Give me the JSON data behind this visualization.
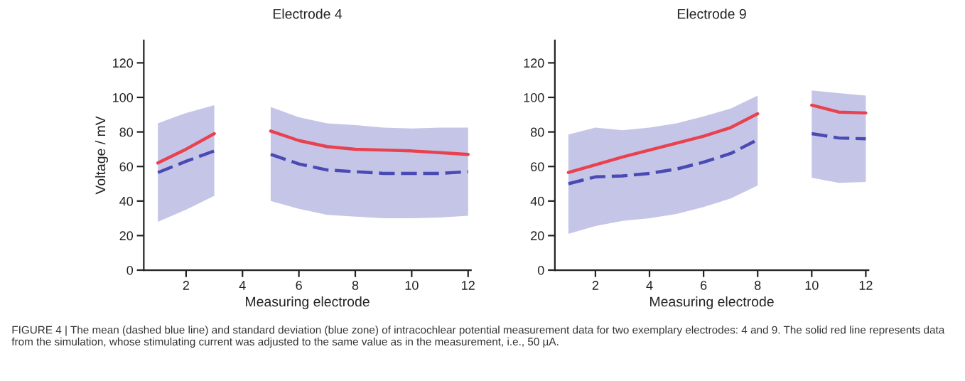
{
  "chart_data": [
    {
      "type": "line",
      "title": "Electrode 4",
      "xlabel": "Measuring electrode",
      "ylabel": "Voltage / mV",
      "x": [
        1,
        2,
        3,
        4,
        5,
        6,
        7,
        8,
        9,
        10,
        11,
        12
      ],
      "xlim": [
        0.5,
        12.1
      ],
      "xticks": [
        2,
        4,
        6,
        8,
        10,
        12
      ],
      "ylim": [
        0,
        133
      ],
      "yticks": [
        0,
        20,
        40,
        60,
        80,
        100,
        120
      ],
      "grid": false,
      "series": [
        {
          "color": "#4a4ab5",
          "line_style": "dashed",
          "values": [
            56.5,
            63,
            69,
            null,
            67,
            61.5,
            58,
            57,
            56,
            56,
            56,
            57
          ],
          "lower": [
            28,
            35,
            43,
            null,
            40,
            35.5,
            32,
            31,
            30,
            30,
            30.5,
            31.5
          ],
          "upper": [
            85,
            91,
            95.5,
            null,
            94.5,
            88.5,
            85,
            84,
            82.5,
            82,
            82.5,
            82.5
          ]
        },
        {
          "color": "#e8424f",
          "line_style": "solid",
          "values": [
            62,
            70,
            79,
            null,
            80.5,
            75,
            71.5,
            70,
            69.5,
            69,
            68,
            67
          ]
        }
      ],
      "annotations": [
        "FIGURE 4 | The mean (dashed blue line) and standard deviation (blue zone) of intracochlear potential measurement data for two exemplary electrodes: 4 and 9. The solid red line represents data from the simulation, whose stimulating current was adjusted to the same value as in the measurement, i.e., 50 µA."
      ]
    },
    {
      "type": "line",
      "title": "Electrode 9",
      "xlabel": "Measuring electrode",
      "x": [
        1,
        2,
        3,
        4,
        5,
        6,
        7,
        8,
        9,
        10,
        11,
        12
      ],
      "xlim": [
        0.5,
        12.1
      ],
      "xticks": [
        2,
        4,
        6,
        8,
        10,
        12
      ],
      "ylim": [
        0,
        133
      ],
      "yticks": [
        0,
        20,
        40,
        60,
        80,
        100,
        120
      ],
      "grid": false,
      "series": [
        {
          "color": "#4a4ab5",
          "line_style": "dashed",
          "values": [
            50,
            54,
            54.5,
            56,
            58.5,
            62.5,
            67.5,
            75.5,
            null,
            79,
            76.5,
            76
          ],
          "lower": [
            21,
            25.5,
            28.5,
            30,
            32.5,
            36.5,
            41.5,
            49,
            null,
            53.5,
            50.5,
            51
          ],
          "upper": [
            78.5,
            82.5,
            81,
            82.5,
            85,
            89,
            93.5,
            101,
            null,
            104,
            102.5,
            101
          ]
        },
        {
          "color": "#e8424f",
          "line_style": "solid",
          "values": [
            56.5,
            61,
            65.5,
            69.5,
            73.5,
            77.5,
            82.5,
            90.5,
            null,
            95.5,
            91.5,
            91
          ]
        }
      ]
    }
  ]
}
